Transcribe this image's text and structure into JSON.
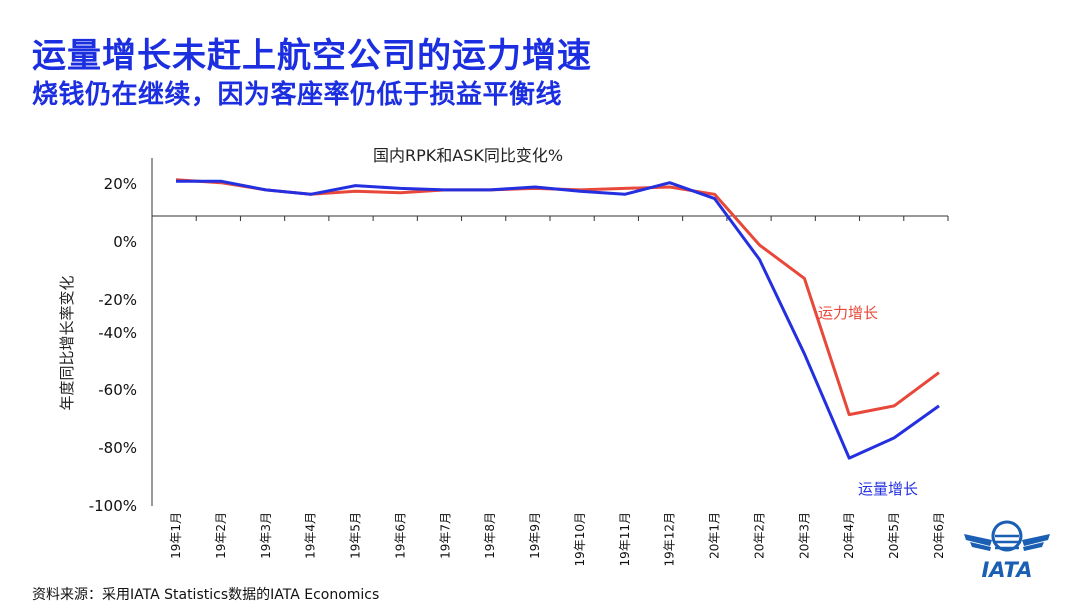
{
  "header": {
    "title": "运量增长未赶上航空公司的运力增速",
    "subtitle": "烧钱仍在继续，因为客座率仍低于损益平衡线"
  },
  "footer": {
    "source": "资料来源：采用IATA Statistics数据的IATA Economics"
  },
  "logo": {
    "text": "IATA"
  },
  "colors": {
    "heading": "#1c2fe0",
    "capacity": "#e8483a",
    "traffic": "#2430e0"
  },
  "chart_data": {
    "type": "line",
    "title": "国内RPK和ASK同比变化%",
    "ylabel": "年度同比增长率变化",
    "xlabel": "",
    "ylim": [
      -100,
      20
    ],
    "ytick_values": [
      20,
      0,
      -20,
      -40,
      -60,
      -80,
      -100
    ],
    "ytick_labels": [
      "20%",
      "0%",
      "-20%",
      "-40%",
      "-60%",
      "-80%",
      "-100%"
    ],
    "categories": [
      "19年1月",
      "19年2月",
      "19年3月",
      "19年4月",
      "19年5月",
      "19年6月",
      "19年7月",
      "19年8月",
      "19年9月",
      "19年10月",
      "19年11月",
      "19年12月",
      "20年1月",
      "20年2月",
      "20年3月",
      "20年4月",
      "20年5月",
      "20年6月"
    ],
    "series": [
      {
        "name": "运力增长",
        "color": "#e8483a",
        "values": [
          12.5,
          11.5,
          9,
          7.5,
          8.5,
          8,
          9,
          9,
          9.5,
          9,
          9.5,
          10,
          7.5,
          -10,
          -21.5,
          -68.5,
          -65.5,
          -54
        ]
      },
      {
        "name": "运量增长",
        "color": "#2430e0",
        "values": [
          12,
          12,
          9,
          7.5,
          10.5,
          9.5,
          9,
          9,
          10,
          8.5,
          7.5,
          11.5,
          6,
          -15,
          -47.5,
          -83.5,
          -76.5,
          -65.5
        ]
      }
    ],
    "series_label_positions": [
      "right-of-drop",
      "below-trough"
    ],
    "grid": false
  }
}
